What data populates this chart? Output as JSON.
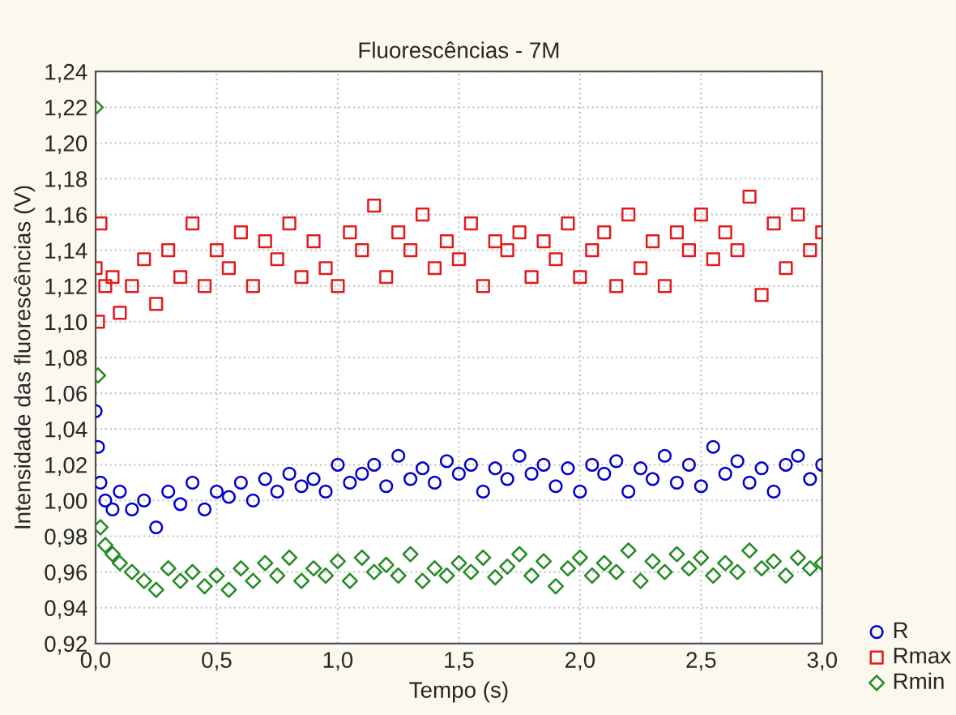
{
  "chart_data": {
    "type": "scatter",
    "title": "Fluorescências - 7M",
    "xlabel": "Tempo (s)",
    "ylabel": "Intensidade das fluorescências (V)",
    "x": [
      0,
      0.01,
      0.02,
      0.04,
      0.07,
      0.1,
      0.15,
      0.2,
      0.25,
      0.3,
      0.35,
      0.4,
      0.45,
      0.5,
      0.55,
      0.6,
      0.65,
      0.7,
      0.75,
      0.8,
      0.85,
      0.9,
      0.95,
      1.0,
      1.05,
      1.1,
      1.15,
      1.2,
      1.25,
      1.3,
      1.35,
      1.4,
      1.45,
      1.5,
      1.55,
      1.6,
      1.65,
      1.7,
      1.75,
      1.8,
      1.85,
      1.9,
      1.95,
      2.0,
      2.05,
      2.1,
      2.15,
      2.2,
      2.25,
      2.3,
      2.35,
      2.4,
      2.45,
      2.5,
      2.55,
      2.6,
      2.65,
      2.7,
      2.75,
      2.8,
      2.85,
      2.9,
      2.95,
      3.0
    ],
    "series": [
      {
        "name": "R",
        "color": "#0000cc",
        "marker": "circle",
        "values": [
          1.05,
          1.03,
          1.01,
          1.0,
          0.995,
          1.005,
          0.995,
          1.0,
          0.985,
          1.005,
          0.998,
          1.01,
          0.995,
          1.005,
          1.002,
          1.01,
          1.0,
          1.012,
          1.005,
          1.015,
          1.008,
          1.012,
          1.005,
          1.02,
          1.01,
          1.015,
          1.02,
          1.008,
          1.025,
          1.012,
          1.018,
          1.01,
          1.022,
          1.015,
          1.02,
          1.005,
          1.018,
          1.012,
          1.025,
          1.015,
          1.02,
          1.008,
          1.018,
          1.005,
          1.02,
          1.015,
          1.022,
          1.005,
          1.018,
          1.012,
          1.025,
          1.01,
          1.02,
          1.008,
          1.03,
          1.015,
          1.022,
          1.01,
          1.018,
          1.005,
          1.02,
          1.025,
          1.012,
          1.02
        ]
      },
      {
        "name": "Rmax",
        "color": "#e31a1c",
        "marker": "square",
        "values": [
          1.13,
          1.1,
          1.155,
          1.12,
          1.125,
          1.105,
          1.12,
          1.135,
          1.11,
          1.14,
          1.125,
          1.155,
          1.12,
          1.14,
          1.13,
          1.15,
          1.12,
          1.145,
          1.135,
          1.155,
          1.125,
          1.145,
          1.13,
          1.12,
          1.15,
          1.14,
          1.165,
          1.125,
          1.15,
          1.14,
          1.16,
          1.13,
          1.145,
          1.135,
          1.155,
          1.12,
          1.145,
          1.14,
          1.15,
          1.125,
          1.145,
          1.135,
          1.155,
          1.125,
          1.14,
          1.15,
          1.12,
          1.16,
          1.13,
          1.145,
          1.12,
          1.15,
          1.14,
          1.16,
          1.135,
          1.15,
          1.14,
          1.17,
          1.115,
          1.155,
          1.13,
          1.16,
          1.14,
          1.15
        ]
      },
      {
        "name": "Rmin",
        "color": "#228b22",
        "marker": "diamond",
        "values": [
          1.22,
          1.07,
          0.985,
          0.975,
          0.97,
          0.965,
          0.96,
          0.955,
          0.95,
          0.962,
          0.955,
          0.96,
          0.952,
          0.958,
          0.95,
          0.962,
          0.955,
          0.965,
          0.958,
          0.968,
          0.955,
          0.962,
          0.958,
          0.966,
          0.955,
          0.968,
          0.96,
          0.964,
          0.958,
          0.97,
          0.955,
          0.962,
          0.958,
          0.965,
          0.96,
          0.968,
          0.957,
          0.963,
          0.97,
          0.958,
          0.966,
          0.952,
          0.962,
          0.968,
          0.958,
          0.965,
          0.96,
          0.972,
          0.955,
          0.966,
          0.96,
          0.97,
          0.962,
          0.968,
          0.958,
          0.965,
          0.96,
          0.972,
          0.962,
          0.966,
          0.958,
          0.968,
          0.962,
          0.965
        ]
      }
    ],
    "xlim": [
      0,
      3
    ],
    "xticks": [
      {
        "value": 0,
        "label": "0,0"
      },
      {
        "value": 0.5,
        "label": "0,5"
      },
      {
        "value": 1.0,
        "label": "1,0"
      },
      {
        "value": 1.5,
        "label": "1,5"
      },
      {
        "value": 2.0,
        "label": "2,0"
      },
      {
        "value": 2.5,
        "label": "2,5"
      },
      {
        "value": 3.0,
        "label": "3,0"
      }
    ],
    "ylim": [
      0.92,
      1.24
    ],
    "yticks": [
      {
        "value": 0.92,
        "label": "0,92"
      },
      {
        "value": 0.94,
        "label": "0,94"
      },
      {
        "value": 0.96,
        "label": "0,96"
      },
      {
        "value": 0.98,
        "label": "0,98"
      },
      {
        "value": 1.0,
        "label": "1,00"
      },
      {
        "value": 1.02,
        "label": "1,02"
      },
      {
        "value": 1.04,
        "label": "1,04"
      },
      {
        "value": 1.06,
        "label": "1,06"
      },
      {
        "value": 1.08,
        "label": "1,08"
      },
      {
        "value": 1.1,
        "label": "1,10"
      },
      {
        "value": 1.12,
        "label": "1,12"
      },
      {
        "value": 1.14,
        "label": "1,14"
      },
      {
        "value": 1.16,
        "label": "1,16"
      },
      {
        "value": 1.18,
        "label": "1,18"
      },
      {
        "value": 1.2,
        "label": "1,20"
      },
      {
        "value": 1.22,
        "label": "1,22"
      },
      {
        "value": 1.24,
        "label": "1,24"
      }
    ],
    "grid": true,
    "legend": "bottom right"
  }
}
